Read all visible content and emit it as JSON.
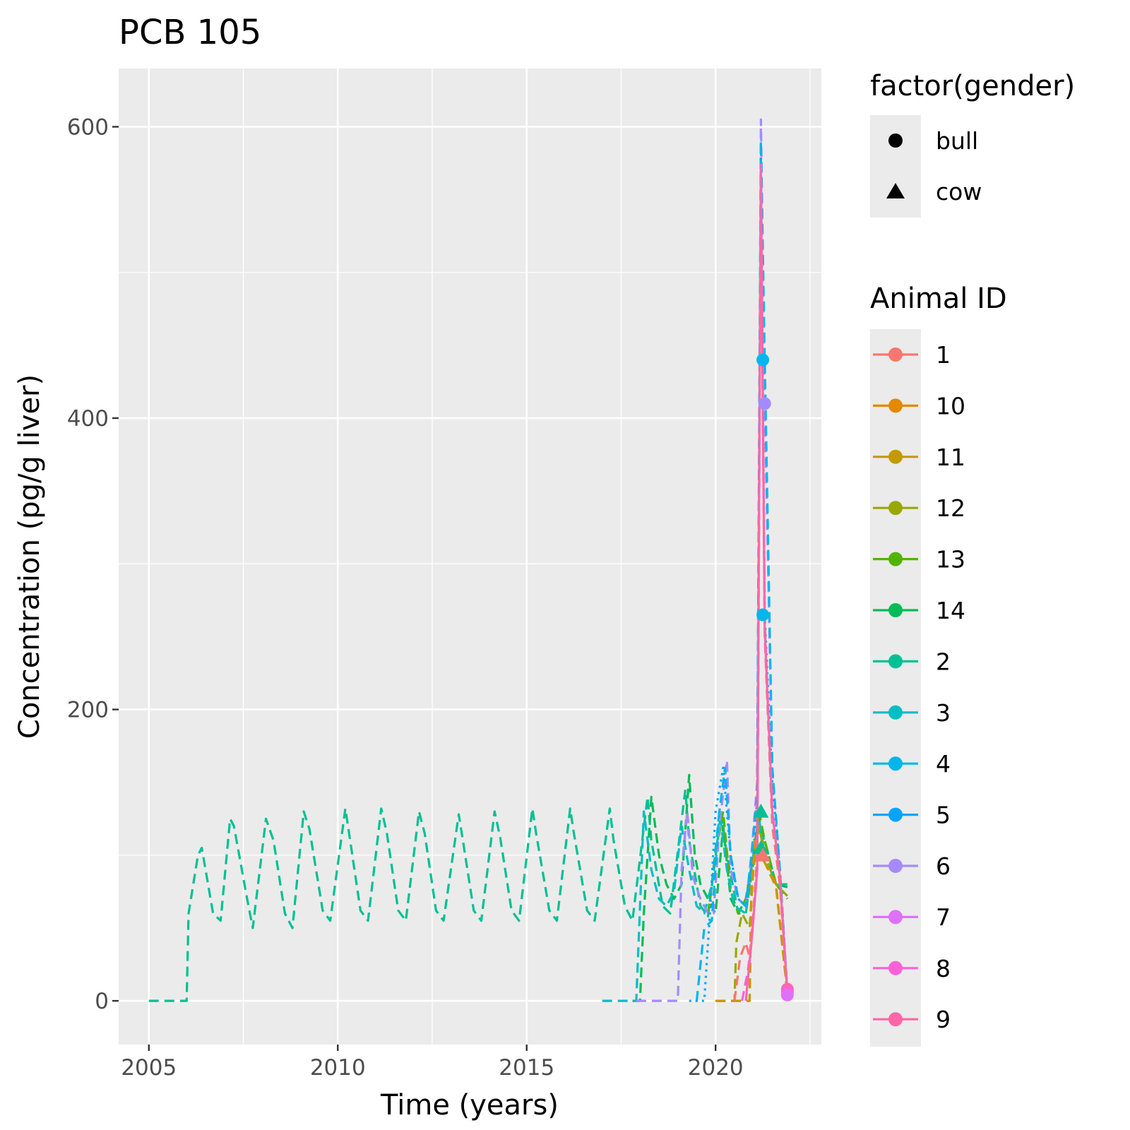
{
  "chart_data": {
    "type": "line",
    "title": "PCB 105",
    "xlabel": "Time (years)",
    "ylabel": "Concentration (pg/g liver)",
    "xlim": [
      2004.2,
      2022.8
    ],
    "ylim": [
      -30,
      640
    ],
    "x_ticks": [
      2005,
      2010,
      2015,
      2020
    ],
    "x_tick_labels": [
      "2005",
      "2010",
      "2015",
      "2020"
    ],
    "y_ticks": [
      0,
      200,
      400,
      600
    ],
    "y_tick_labels": [
      "0",
      "200",
      "400",
      "600"
    ],
    "grid": true,
    "legend_position": "right",
    "shape_legend": {
      "title": "factor(gender)",
      "items": [
        {
          "label": "bull",
          "shape": "circle"
        },
        {
          "label": "cow",
          "shape": "triangle"
        }
      ]
    },
    "color_legend": {
      "title": "Animal ID",
      "items": [
        {
          "label": "1",
          "color": "#F8766D"
        },
        {
          "label": "10",
          "color": "#E38900"
        },
        {
          "label": "11",
          "color": "#C49A00"
        },
        {
          "label": "12",
          "color": "#99A800"
        },
        {
          "label": "13",
          "color": "#53B400"
        },
        {
          "label": "14",
          "color": "#00BC56"
        },
        {
          "label": "2",
          "color": "#00C094"
        },
        {
          "label": "3",
          "color": "#00BFC4"
        },
        {
          "label": "4",
          "color": "#00B6EB"
        },
        {
          "label": "5",
          "color": "#06A4FF"
        },
        {
          "label": "6",
          "color": "#A58AFF"
        },
        {
          "label": "7",
          "color": "#DF70F8"
        },
        {
          "label": "8",
          "color": "#FB61D7"
        },
        {
          "label": "9",
          "color": "#FF66A8"
        }
      ]
    },
    "series": [
      {
        "name": "2",
        "color": "#00C094",
        "dash": "dashed",
        "x": [
          2005.0,
          2006.0,
          2006.05,
          2006.3,
          2006.4,
          2006.7,
          2006.9,
          2007.15,
          2007.25,
          2007.6,
          2007.75,
          2008.1,
          2008.3,
          2008.6,
          2008.8,
          2009.1,
          2009.25,
          2009.6,
          2009.8,
          2010.2,
          2010.3,
          2010.6,
          2010.8,
          2011.15,
          2011.3,
          2011.6,
          2011.8,
          2012.15,
          2012.3,
          2012.6,
          2012.8,
          2013.2,
          2013.3,
          2013.6,
          2013.8,
          2014.15,
          2014.3,
          2014.6,
          2014.8,
          2015.15,
          2015.25,
          2015.6,
          2015.8,
          2016.15,
          2016.25,
          2016.6,
          2016.8,
          2017.2,
          2017.3,
          2017.6,
          2017.8,
          2018.2,
          2018.3,
          2018.6,
          2018.8,
          2019.2,
          2019.3,
          2019.6,
          2019.8,
          2020.15,
          2020.3,
          2020.6,
          2020.8,
          2021.0,
          2021.1,
          2021.3,
          2021.6,
          2021.9
        ],
        "y": [
          0,
          0,
          60,
          100,
          105,
          60,
          55,
          125,
          120,
          70,
          50,
          125,
          110,
          60,
          50,
          130,
          118,
          62,
          55,
          132,
          115,
          62,
          55,
          132,
          115,
          62,
          55,
          130,
          115,
          62,
          55,
          128,
          112,
          62,
          55,
          130,
          112,
          62,
          55,
          132,
          115,
          62,
          55,
          132,
          115,
          62,
          55,
          132,
          110,
          65,
          55,
          140,
          110,
          65,
          60,
          145,
          110,
          65,
          58,
          130,
          100,
          60,
          60,
          95,
          120,
          110,
          80,
          80
        ]
      },
      {
        "name": "14",
        "color": "#00BC56",
        "dash": "dashed",
        "x": [
          2017.8,
          2018.0,
          2018.1,
          2018.3,
          2018.5,
          2018.7,
          2018.9,
          2019.1,
          2019.3,
          2019.45,
          2019.6,
          2019.8,
          2020.0,
          2020.2,
          2020.4,
          2020.6,
          2020.8,
          2021.0,
          2021.15,
          2021.3,
          2021.6,
          2021.9
        ],
        "y": [
          0,
          0,
          60,
          140,
          100,
          80,
          70,
          80,
          155,
          100,
          80,
          70,
          60,
          120,
          70,
          60,
          70,
          100,
          125,
          110,
          80,
          78
        ]
      },
      {
        "name": "13",
        "color": "#53B400",
        "dash": "dashed",
        "x": [
          2019.8,
          2020.0,
          2020.2,
          2020.4,
          2020.6,
          2020.8,
          2021.0,
          2021.15,
          2021.3,
          2021.6,
          2021.9
        ],
        "y": [
          60,
          100,
          130,
          75,
          60,
          70,
          100,
          130,
          110,
          80,
          70
        ]
      },
      {
        "name": "3",
        "color": "#00BFC4",
        "dash": "dashed",
        "x": [
          2017.0,
          2017.8,
          2017.9,
          2018.1,
          2018.3,
          2018.5,
          2018.7,
          2018.9,
          2019.1,
          2019.3,
          2019.5,
          2019.7,
          2019.9,
          2020.1,
          2020.3,
          2020.5,
          2020.8,
          2021.0,
          2021.15,
          2021.3,
          2021.6,
          2021.9
        ],
        "y": [
          0,
          0,
          0,
          130,
          90,
          70,
          65,
          75,
          120,
          90,
          65,
          60,
          80,
          130,
          90,
          65,
          60,
          100,
          125,
          100,
          80,
          78
        ]
      },
      {
        "name": "6",
        "color": "#A58AFF",
        "dash": "dashed",
        "x": [
          2017.9,
          2019.0,
          2019.1,
          2019.25,
          2019.4,
          2019.6,
          2019.8,
          2019.95,
          2020.1,
          2020.3,
          2020.4,
          2020.6,
          2020.8,
          2020.95,
          2021.1,
          2021.2,
          2021.3,
          2021.5,
          2021.7,
          2021.9
        ],
        "y": [
          0,
          0,
          90,
          130,
          85,
          70,
          60,
          60,
          120,
          165,
          90,
          70,
          65,
          100,
          150,
          605,
          410,
          160,
          90,
          5
        ]
      },
      {
        "name": "4",
        "color": "#00B6EB",
        "dash": "dashed",
        "x": [
          2019.5,
          2019.7,
          2019.9,
          2020.1,
          2020.25,
          2020.4,
          2020.6,
          2020.8,
          2020.95,
          2021.1,
          2021.2,
          2021.3,
          2021.5,
          2021.7,
          2021.9
        ],
        "y": [
          0,
          50,
          55,
          130,
          160,
          100,
          70,
          65,
          100,
          140,
          590,
          440,
          160,
          90,
          5
        ]
      },
      {
        "name": "5",
        "color": "#06A4FF",
        "dash": "dotted",
        "x": [
          2019.3,
          2019.7,
          2019.85,
          2020.0,
          2020.2,
          2020.4,
          2020.6,
          2020.8,
          2021.0,
          2021.1,
          2021.2,
          2021.3,
          2021.5,
          2021.7,
          2021.9
        ],
        "y": [
          0,
          0,
          60,
          130,
          160,
          100,
          70,
          65,
          100,
          140,
          580,
          265,
          150,
          90,
          5
        ]
      },
      {
        "name": "12",
        "color": "#99A800",
        "dash": "dashed",
        "x": [
          2020.0,
          2020.5,
          2020.55,
          2020.7,
          2020.9,
          2021.0,
          2021.15,
          2021.3,
          2021.6,
          2021.9
        ],
        "y": [
          0,
          0,
          40,
          60,
          50,
          90,
          120,
          100,
          80,
          72
        ]
      },
      {
        "name": "10",
        "color": "#E38900",
        "dash": "dashed",
        "x": [
          2020.0,
          2020.9,
          2020.95,
          2021.05,
          2021.15,
          2021.3,
          2021.6,
          2021.9
        ],
        "y": [
          0,
          0,
          80,
          110,
          100,
          95,
          80,
          5
        ]
      },
      {
        "name": "11",
        "color": "#C49A00",
        "dash": "dashed",
        "x": [
          2020.0,
          2020.9,
          2020.95,
          2021.05,
          2021.15,
          2021.3,
          2021.6,
          2021.9
        ],
        "y": [
          0,
          0,
          75,
          105,
          100,
          95,
          78,
          5
        ]
      },
      {
        "name": "1",
        "color": "#F8766D",
        "dash": "dashed",
        "x": [
          2020.5,
          2020.65,
          2020.8,
          2020.9,
          2021.0,
          2021.1,
          2021.2,
          2021.3,
          2021.5,
          2021.7,
          2021.9
        ],
        "y": [
          0,
          30,
          40,
          30,
          60,
          100,
          560,
          250,
          120,
          80,
          5
        ]
      },
      {
        "name": "8",
        "color": "#FB61D7",
        "dash": "dashed",
        "x": [
          2020.7,
          2020.85,
          2020.95,
          2021.1,
          2021.2,
          2021.3,
          2021.5,
          2021.7,
          2021.9
        ],
        "y": [
          0,
          20,
          40,
          90,
          575,
          260,
          130,
          85,
          5
        ]
      },
      {
        "name": "9",
        "color": "#FF66A8",
        "dash": "solid",
        "x": [
          2020.8,
          2020.95,
          2021.1,
          2021.2,
          2021.3,
          2021.5,
          2021.7,
          2021.9
        ],
        "y": [
          0,
          40,
          90,
          570,
          255,
          130,
          85,
          5
        ]
      }
    ],
    "markers": [
      {
        "series": "4",
        "x": 2021.25,
        "y": 440,
        "shape": "circle"
      },
      {
        "series": "6",
        "x": 2021.3,
        "y": 410,
        "shape": "circle"
      },
      {
        "series": "4",
        "x": 2021.25,
        "y": 265,
        "shape": "circle"
      },
      {
        "series": "2",
        "x": 2021.2,
        "y": 130,
        "shape": "triangle"
      },
      {
        "series": "2",
        "x": 2021.2,
        "y": 105,
        "shape": "triangle"
      },
      {
        "series": "1",
        "x": 2021.25,
        "y": 100,
        "shape": "triangle"
      },
      {
        "series": "9",
        "x": 2021.9,
        "y": 8,
        "shape": "circle"
      },
      {
        "series": "8",
        "x": 2021.9,
        "y": 6,
        "shape": "circle"
      },
      {
        "series": "7",
        "x": 2021.9,
        "y": 4,
        "shape": "circle"
      }
    ]
  }
}
